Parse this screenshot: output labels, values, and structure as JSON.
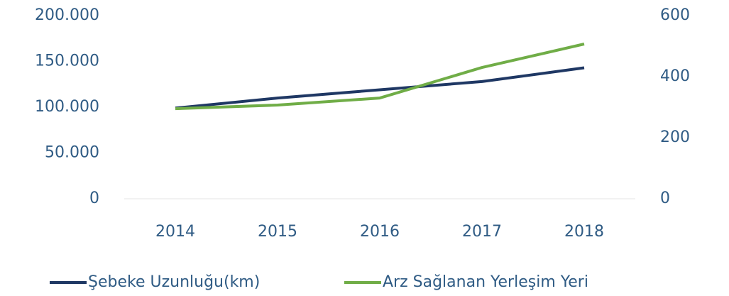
{
  "chart_data": {
    "type": "line",
    "categories": [
      "2014",
      "2015",
      "2016",
      "2017",
      "2018"
    ],
    "series": [
      {
        "name": "Şebeke Uzunluğu(km)",
        "color": "#1f3864",
        "values": [
          99000,
          110000,
          119000,
          128000,
          143000
        ]
      },
      {
        "name": "Arz Sağlanan Yerleşim Yeri",
        "color": "#70ad47",
        "axis": "y2",
        "values": [
          295,
          307,
          330,
          430,
          507
        ]
      }
    ],
    "ylim": [
      0,
      200000
    ],
    "yticks": [
      0,
      {
        "value": 50000,
        "label": "50.000"
      },
      {
        "value": 100000,
        "label": "100.000"
      },
      {
        "value": 150000,
        "label": "150.000"
      },
      {
        "value": 200000,
        "label": "200.000"
      }
    ],
    "y2lim": [
      0,
      600
    ],
    "y2ticks": [
      0,
      200,
      400,
      600
    ],
    "legend": "bottom"
  }
}
